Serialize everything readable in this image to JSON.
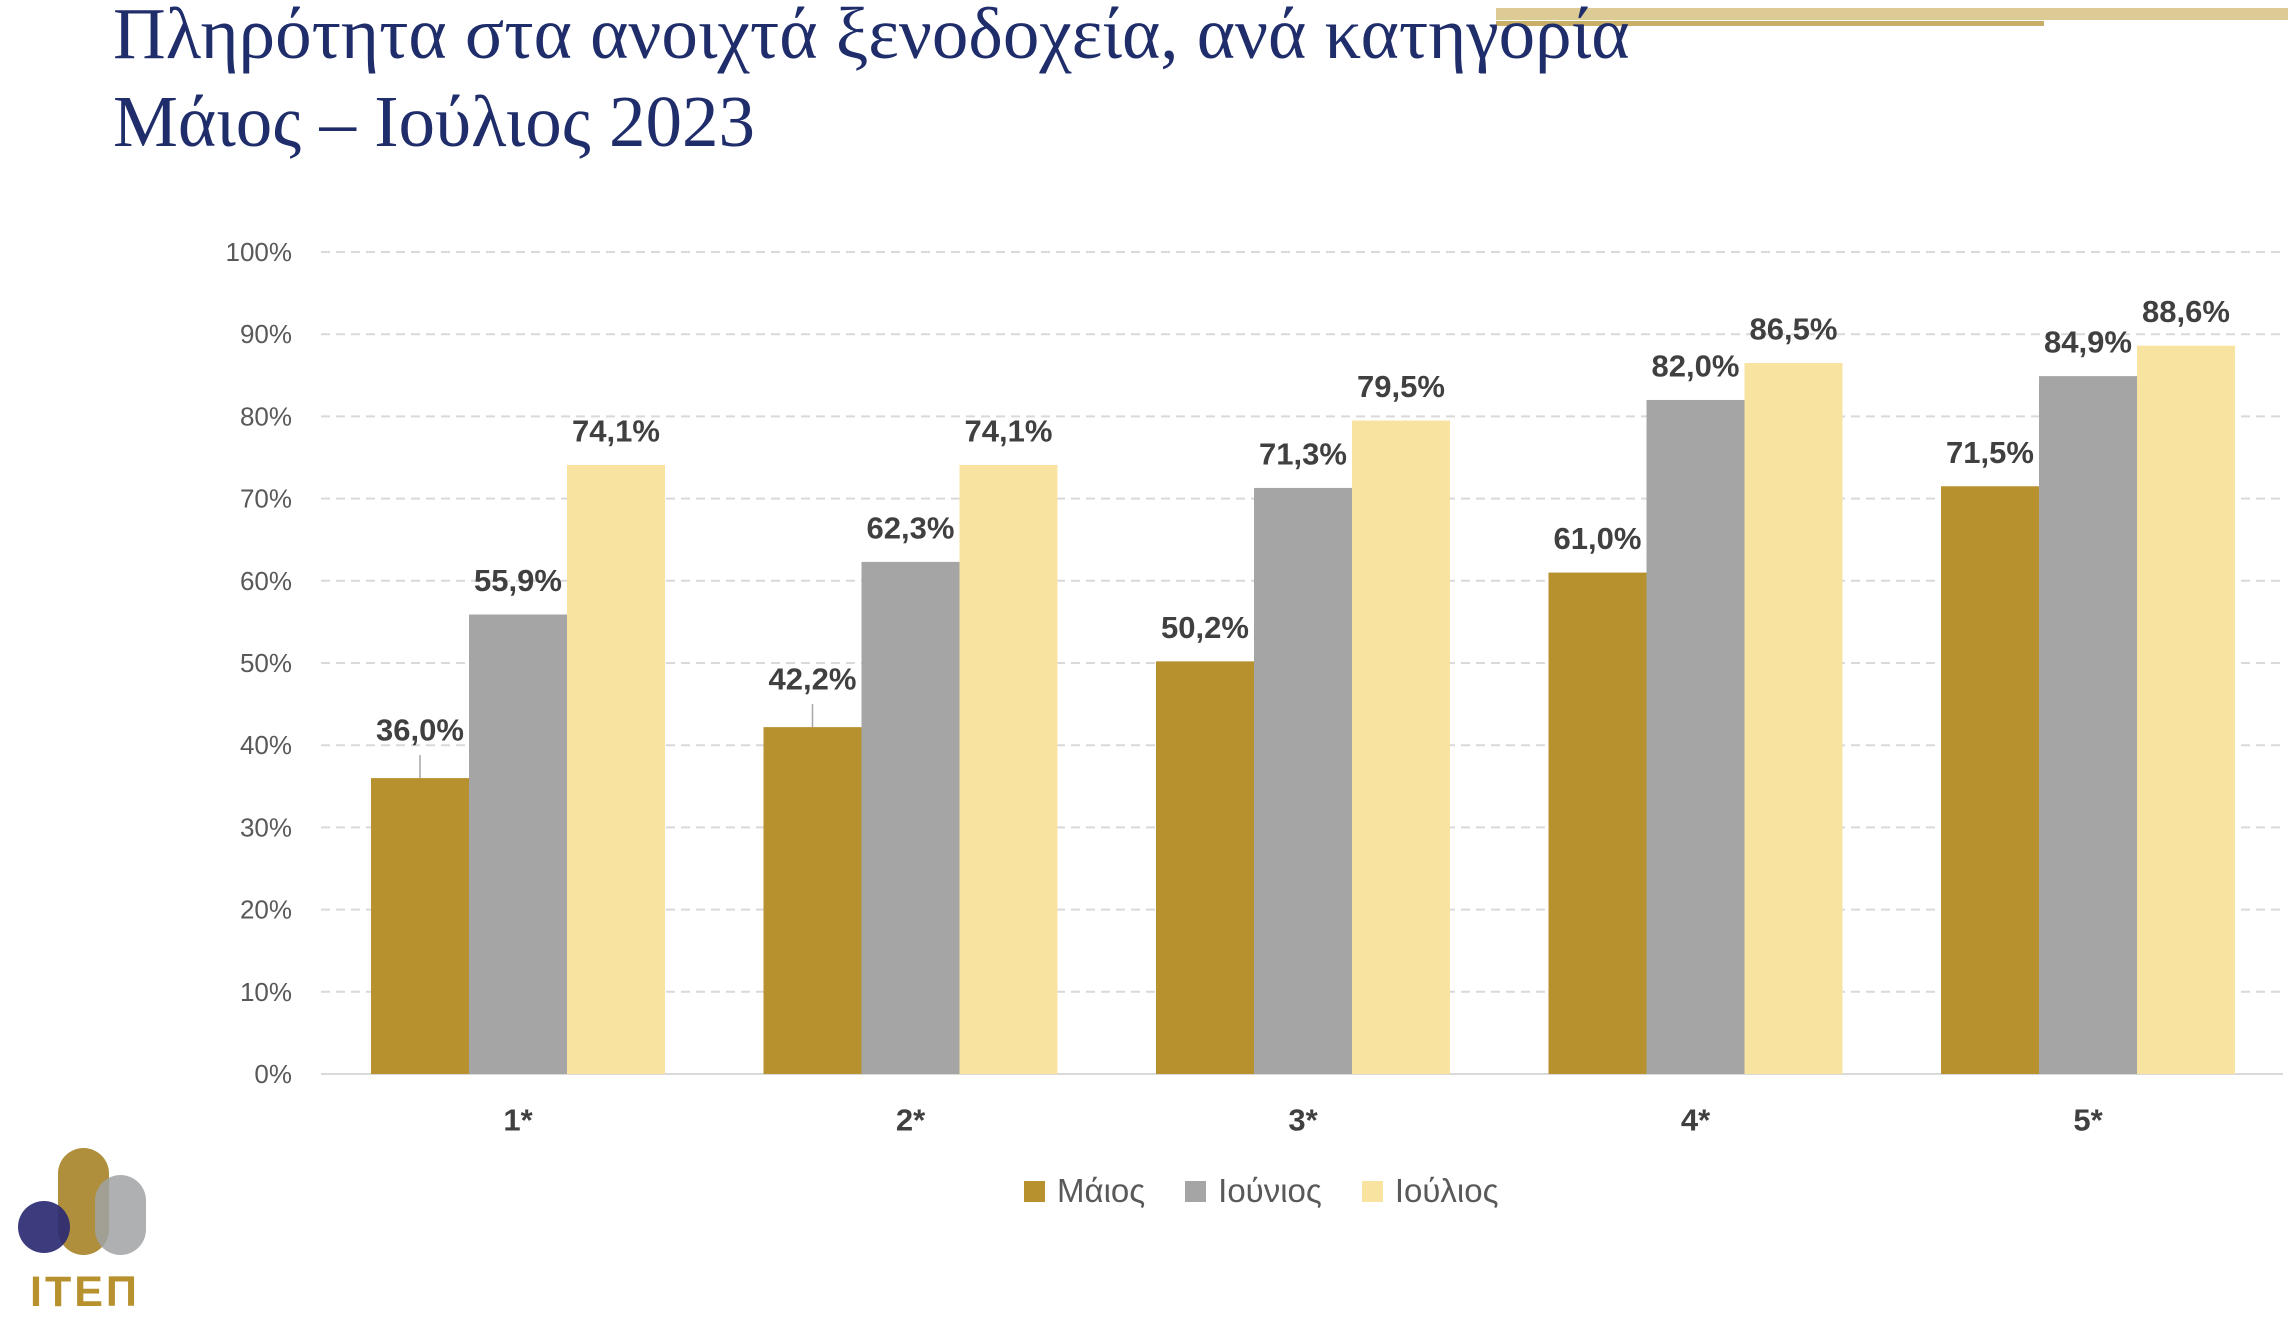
{
  "title": {
    "line1": "Πληρότητα στα ανοιχτά ξενοδοχεία, ανά κατηγορία",
    "line2": "Μάιος – Ιούλιος 2023"
  },
  "colors": {
    "title": "#1F2D6B",
    "header_strip": "#DCCB95",
    "header_line": "#C8AE66",
    "gridline": "#D9D9D9"
  },
  "logo": {
    "text": "ΙΤΕΠ",
    "colors": {
      "navy": "#2B2A72",
      "gold": "#A8862A",
      "gray": "#A0A2A5",
      "text": "#B8912F"
    }
  },
  "chart_data": {
    "type": "bar",
    "categories": [
      "1*",
      "2*",
      "3*",
      "4*",
      "5*"
    ],
    "series": [
      {
        "name": "Μάιος",
        "color": "#B8912F",
        "values": [
          36.0,
          42.2,
          50.2,
          61.0,
          71.5
        ],
        "labels": [
          "36,0%",
          "42,2%",
          "50,2%",
          "61,0%",
          "71,5%"
        ]
      },
      {
        "name": "Ιούνιος",
        "color": "#A5A5A5",
        "values": [
          55.9,
          62.3,
          71.3,
          82.0,
          84.9
        ],
        "labels": [
          "55,9%",
          "62,3%",
          "71,3%",
          "82,0%",
          "84,9%"
        ]
      },
      {
        "name": "Ιούλιος",
        "color": "#F8E3A1",
        "values": [
          74.1,
          74.1,
          79.5,
          86.5,
          88.6
        ],
        "labels": [
          "74,1%",
          "74,1%",
          "79,5%",
          "86,5%",
          "88,6%"
        ]
      }
    ],
    "y_ticks": [
      "0%",
      "10%",
      "20%",
      "30%",
      "40%",
      "50%",
      "60%",
      "70%",
      "80%",
      "90%",
      "100%"
    ],
    "ylim": [
      0,
      100
    ],
    "grid": true,
    "legend": "bottom"
  }
}
